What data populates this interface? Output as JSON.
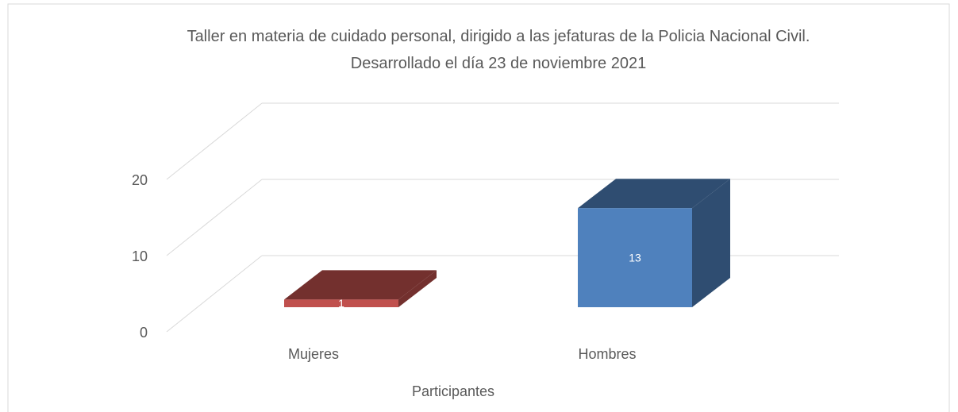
{
  "chart_data": {
    "type": "bar3d",
    "title": [
      "Taller en materia de cuidado personal, dirigido a las jefaturas de la Policia Nacional Civil.",
      "Desarrollado el día 23 de noviembre 2021"
    ],
    "categories": [
      "Mujeres",
      "Hombres"
    ],
    "values": [
      1,
      13
    ],
    "colors": [
      "#c0504d",
      "#4f81bd"
    ],
    "x_label": "Participantes",
    "ylim": [
      0,
      20
    ],
    "yticks": [
      0,
      10,
      20
    ],
    "grid": true
  }
}
